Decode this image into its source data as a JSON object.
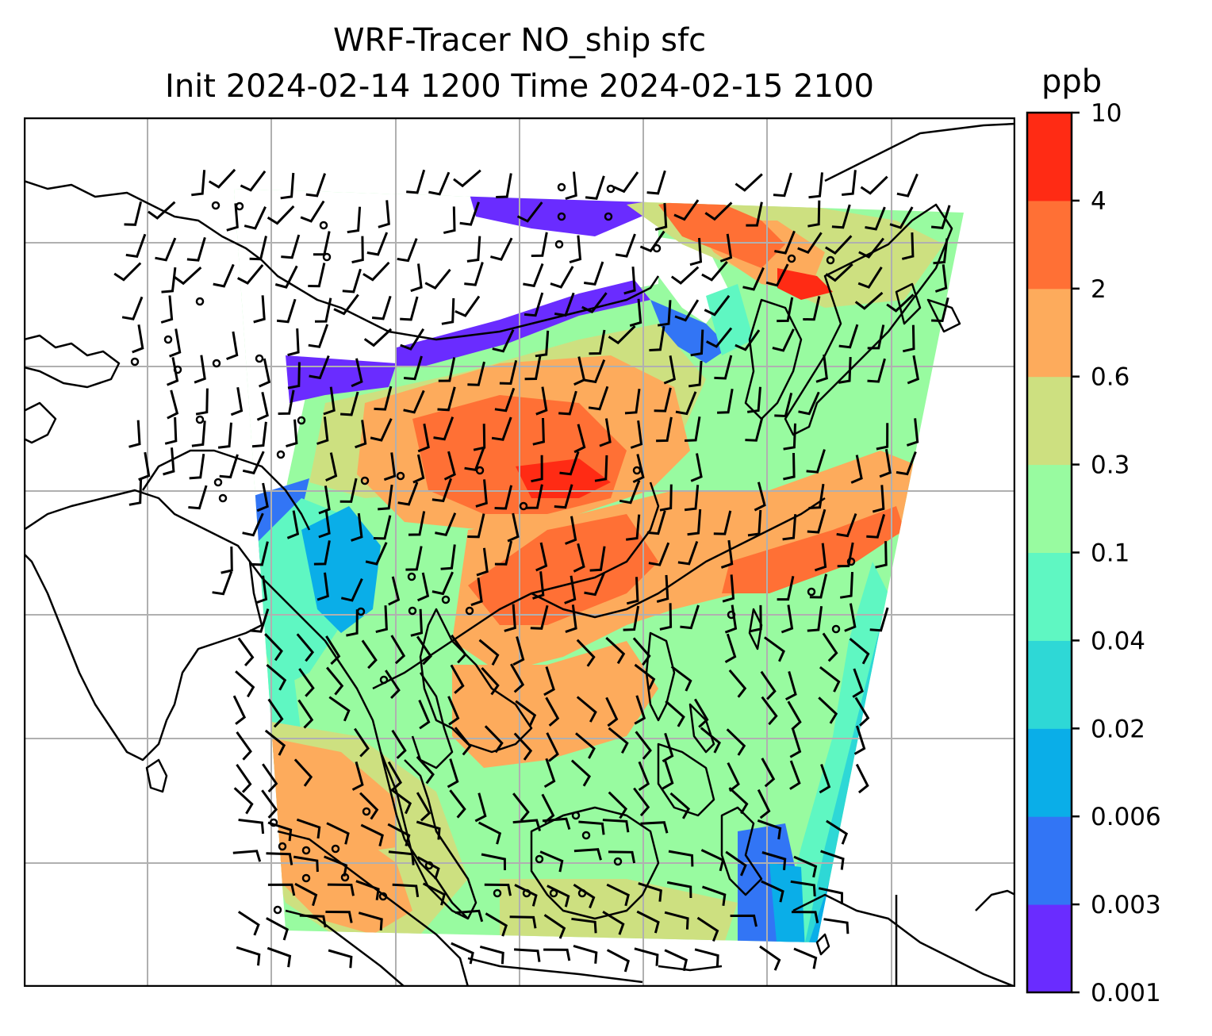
{
  "title": {
    "line1": "WRF-Tracer NO_ship sfc",
    "line2": "Init 2024-02-14 1200 Time 2024-02-15 2100"
  },
  "colorbar": {
    "unit": "ppb",
    "levels": [
      "0.001",
      "0.003",
      "0.006",
      "0.02",
      "0.04",
      "0.1",
      "0.3",
      "0.6",
      "2",
      "4",
      "10"
    ],
    "colors": [
      "#6a2cff",
      "#3275f5",
      "#0aaee8",
      "#2ed8d6",
      "#5ff7c2",
      "#98fba0",
      "#cde080",
      "#fdab5c",
      "#ff7035",
      "#ff2b14"
    ]
  },
  "map": {
    "projection": "regional",
    "gridlines": true,
    "coastlines": true,
    "wind_barbs": true,
    "calm_markers": true
  }
}
